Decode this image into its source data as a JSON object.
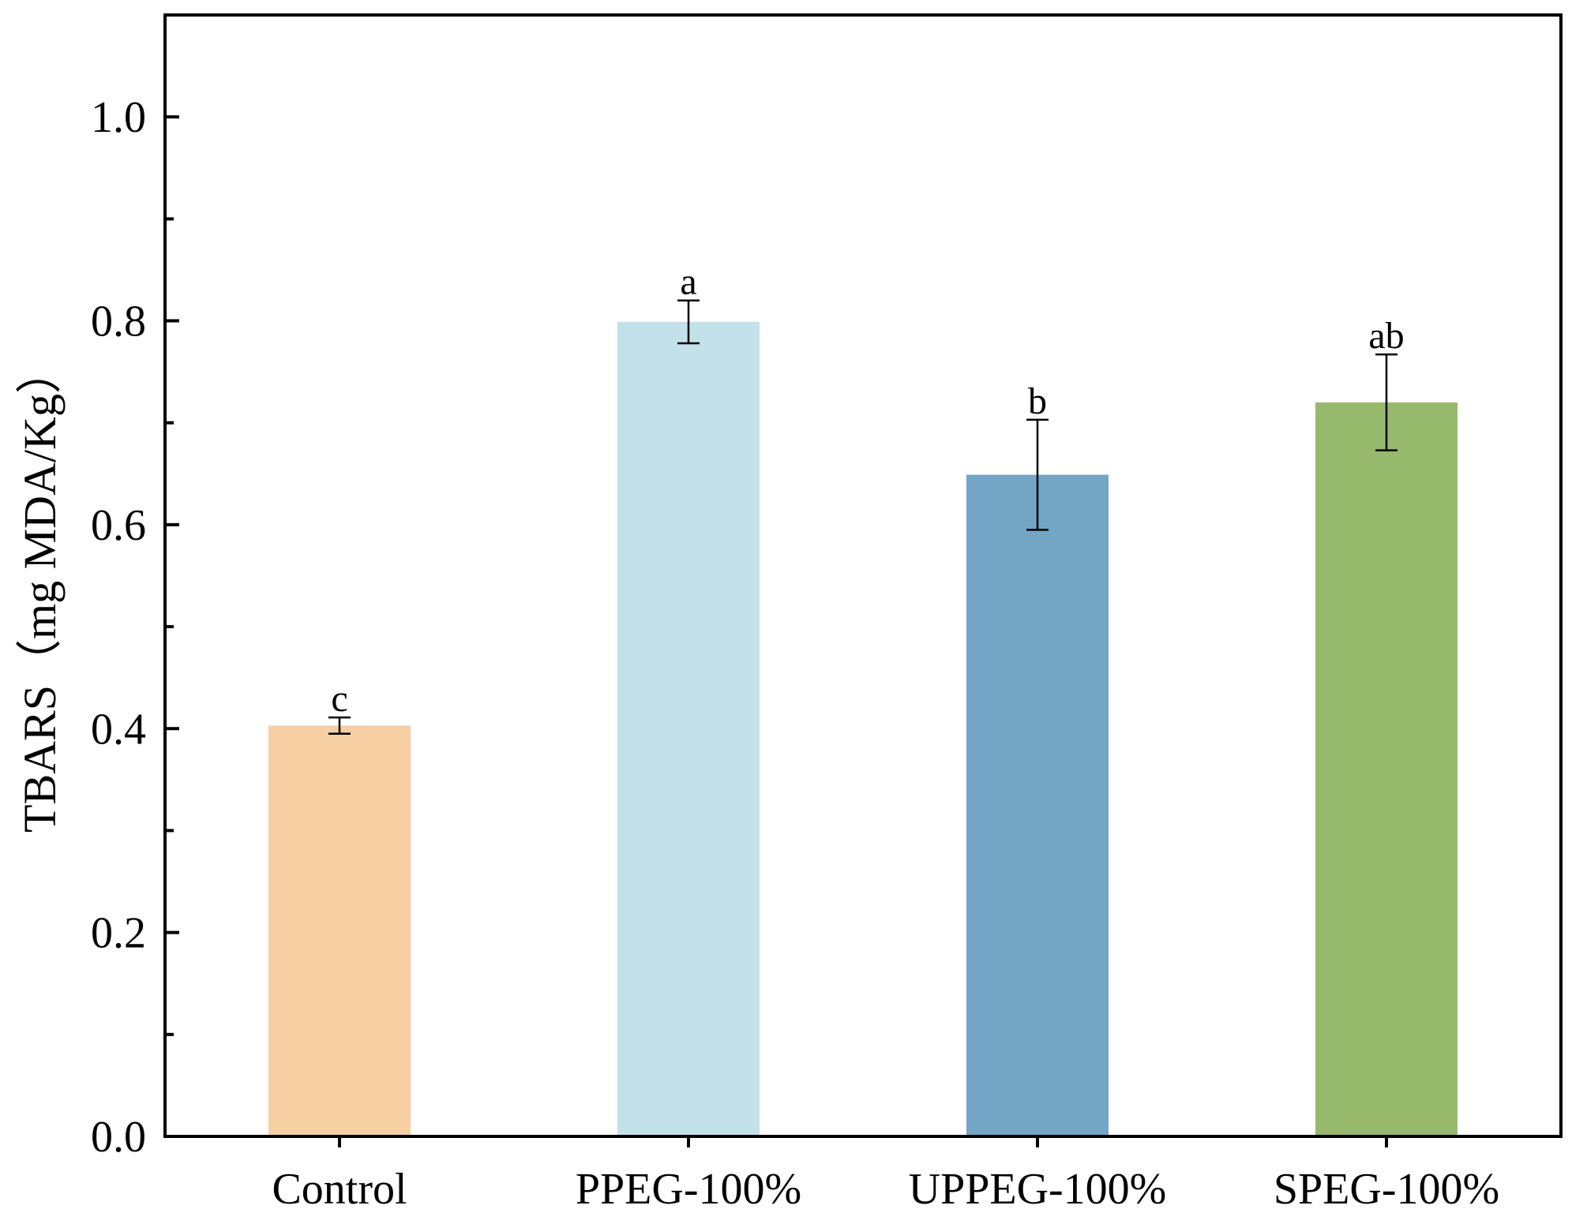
{
  "chart_data": {
    "type": "bar",
    "title": "",
    "xlabel": "",
    "ylabel": "TBARS（mg MDA/Kg）",
    "ylim": [
      0.0,
      1.1
    ],
    "yticks": [
      0.0,
      0.2,
      0.4,
      0.6,
      0.8,
      1.0
    ],
    "ytick_labels": [
      "0.0",
      "0.2",
      "0.4",
      "0.6",
      "0.8",
      "1.0"
    ],
    "minor_ticks": [
      0.1,
      0.3,
      0.5,
      0.7,
      0.9
    ],
    "categories": [
      "Control",
      "PPEG-100%",
      "UPPEG-100%",
      "SPEG-100%"
    ],
    "values": [
      0.403,
      0.799,
      0.649,
      0.72
    ],
    "errors": [
      0.008,
      0.021,
      0.054,
      0.047
    ],
    "significance": [
      "c",
      "a",
      "b",
      "ab"
    ],
    "colors": [
      "#F6CFA3",
      "#C2E1E9",
      "#73A5C5",
      "#97B96B"
    ],
    "grid": false,
    "legend": false
  }
}
